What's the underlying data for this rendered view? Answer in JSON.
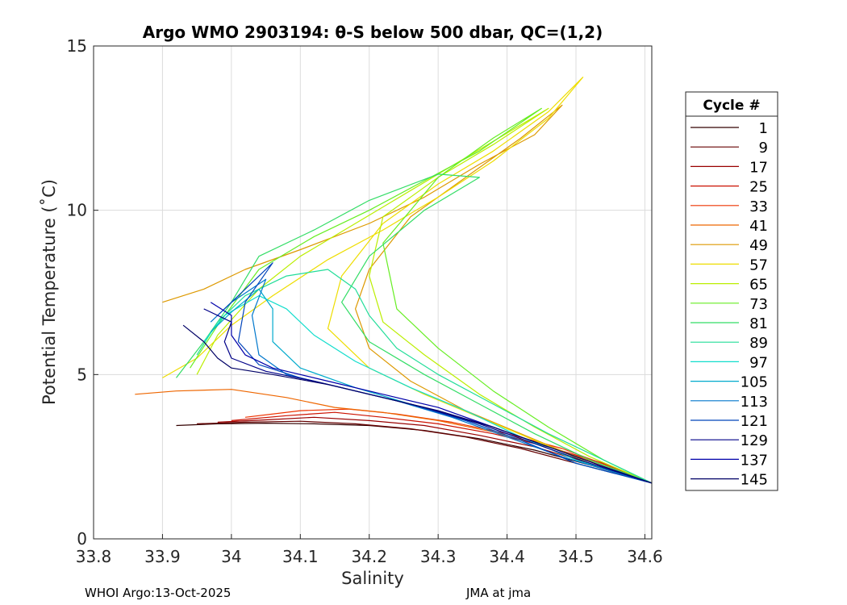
{
  "chart_data": {
    "type": "line",
    "title": "Argo WMO 2903194: θ-S below 500 dbar,  QC=(1,2)",
    "xlabel": "Salinity",
    "ylabel": "Potential Temperature (˚C)",
    "xlim": [
      33.8,
      34.61
    ],
    "ylim": [
      0,
      15
    ],
    "xticks": [
      33.8,
      33.9,
      34.0,
      34.1,
      34.2,
      34.3,
      34.4,
      34.5,
      34.6
    ],
    "xtick_labels": [
      "33.8",
      "33.9",
      "34",
      "34.1",
      "34.2",
      "34.3",
      "34.4",
      "34.5",
      "34.6"
    ],
    "yticks": [
      0,
      5,
      10,
      15
    ],
    "ytick_labels": [
      "0",
      "5",
      "10",
      "15"
    ],
    "grid": true,
    "legend": {
      "title": "Cycle #",
      "placement": "right-outside",
      "entries": [
        "1",
        "9",
        "17",
        "25",
        "33",
        "41",
        "49",
        "57",
        "65",
        "73",
        "81",
        "89",
        "97",
        "105",
        "113",
        "121",
        "129",
        "137",
        "145"
      ],
      "colors": [
        "#330000",
        "#660000",
        "#990000",
        "#cc1100",
        "#ee3300",
        "#ee6600",
        "#dd9900",
        "#eedd00",
        "#bbee00",
        "#66ee22",
        "#33dd66",
        "#22dd99",
        "#11ddcc",
        "#00aacc",
        "#0077cc",
        "#0044bb",
        "#000088",
        "#0000aa",
        "#000066"
      ]
    },
    "series": [
      {
        "color": "#330000",
        "points": [
          [
            33.92,
            3.45
          ],
          [
            33.98,
            3.5
          ],
          [
            34.05,
            3.52
          ],
          [
            34.12,
            3.5
          ],
          [
            34.2,
            3.45
          ],
          [
            34.28,
            3.3
          ],
          [
            34.36,
            3.05
          ],
          [
            34.44,
            2.7
          ],
          [
            34.52,
            2.25
          ],
          [
            34.61,
            1.7
          ]
        ]
      },
      {
        "color": "#660000",
        "points": [
          [
            33.95,
            3.5
          ],
          [
            34.02,
            3.55
          ],
          [
            34.1,
            3.58
          ],
          [
            34.18,
            3.5
          ],
          [
            34.26,
            3.35
          ],
          [
            34.34,
            3.1
          ],
          [
            34.42,
            2.75
          ],
          [
            34.5,
            2.3
          ],
          [
            34.61,
            1.7
          ]
        ]
      },
      {
        "color": "#990000",
        "points": [
          [
            33.98,
            3.55
          ],
          [
            34.05,
            3.62
          ],
          [
            34.12,
            3.7
          ],
          [
            34.2,
            3.6
          ],
          [
            34.28,
            3.45
          ],
          [
            34.36,
            3.15
          ],
          [
            34.44,
            2.8
          ],
          [
            34.52,
            2.3
          ],
          [
            34.61,
            1.7
          ]
        ]
      },
      {
        "color": "#cc1100",
        "points": [
          [
            34.0,
            3.6
          ],
          [
            34.08,
            3.75
          ],
          [
            34.15,
            3.85
          ],
          [
            34.22,
            3.7
          ],
          [
            34.3,
            3.5
          ],
          [
            34.38,
            3.2
          ],
          [
            34.46,
            2.8
          ],
          [
            34.54,
            2.3
          ],
          [
            34.61,
            1.7
          ]
        ]
      },
      {
        "color": "#ee3300",
        "points": [
          [
            34.02,
            3.7
          ],
          [
            34.1,
            3.9
          ],
          [
            34.17,
            3.95
          ],
          [
            34.24,
            3.8
          ],
          [
            34.32,
            3.55
          ],
          [
            34.4,
            3.2
          ],
          [
            34.48,
            2.75
          ],
          [
            34.55,
            2.2
          ],
          [
            34.61,
            1.7
          ]
        ]
      },
      {
        "color": "#ee6600",
        "points": [
          [
            33.86,
            4.4
          ],
          [
            33.92,
            4.5
          ],
          [
            34.0,
            4.55
          ],
          [
            34.08,
            4.3
          ],
          [
            34.15,
            4.0
          ],
          [
            34.22,
            3.85
          ],
          [
            34.3,
            3.6
          ],
          [
            34.38,
            3.25
          ],
          [
            34.46,
            2.8
          ],
          [
            34.54,
            2.25
          ],
          [
            34.61,
            1.7
          ]
        ]
      },
      {
        "color": "#dd9900",
        "points": [
          [
            33.9,
            7.2
          ],
          [
            33.96,
            7.6
          ],
          [
            34.02,
            8.2
          ],
          [
            34.1,
            8.8
          ],
          [
            34.2,
            9.6
          ],
          [
            34.28,
            10.4
          ],
          [
            34.36,
            11.4
          ],
          [
            34.44,
            12.3
          ],
          [
            34.48,
            13.2
          ],
          [
            34.42,
            12.2
          ],
          [
            34.34,
            11.0
          ],
          [
            34.26,
            9.8
          ],
          [
            34.2,
            8.2
          ],
          [
            34.18,
            7.0
          ],
          [
            34.2,
            5.8
          ],
          [
            34.26,
            4.8
          ],
          [
            34.34,
            3.9
          ],
          [
            34.42,
            3.2
          ],
          [
            34.5,
            2.5
          ],
          [
            34.61,
            1.7
          ]
        ]
      },
      {
        "color": "#eedd00",
        "points": [
          [
            33.9,
            4.9
          ],
          [
            33.95,
            5.5
          ],
          [
            34.0,
            6.5
          ],
          [
            34.06,
            7.4
          ],
          [
            34.14,
            8.5
          ],
          [
            34.22,
            9.4
          ],
          [
            34.3,
            10.4
          ],
          [
            34.38,
            11.5
          ],
          [
            34.46,
            12.8
          ],
          [
            34.51,
            14.05
          ],
          [
            34.46,
            13.0
          ],
          [
            34.38,
            11.8
          ],
          [
            34.3,
            10.8
          ],
          [
            34.22,
            9.6
          ],
          [
            34.16,
            8.0
          ],
          [
            34.14,
            6.4
          ],
          [
            34.2,
            5.2
          ],
          [
            34.28,
            4.4
          ],
          [
            34.36,
            3.7
          ],
          [
            34.44,
            3.0
          ],
          [
            34.52,
            2.3
          ],
          [
            34.61,
            1.7
          ]
        ]
      },
      {
        "color": "#bbee00",
        "points": [
          [
            33.95,
            5.0
          ],
          [
            33.98,
            6.2
          ],
          [
            34.04,
            7.6
          ],
          [
            34.1,
            8.6
          ],
          [
            34.18,
            9.6
          ],
          [
            34.26,
            10.6
          ],
          [
            34.34,
            11.6
          ],
          [
            34.42,
            12.6
          ],
          [
            34.46,
            13.1
          ],
          [
            34.38,
            12.0
          ],
          [
            34.3,
            11.0
          ],
          [
            34.22,
            9.8
          ],
          [
            34.2,
            8.0
          ],
          [
            34.22,
            6.6
          ],
          [
            34.28,
            5.6
          ],
          [
            34.36,
            4.4
          ],
          [
            34.44,
            3.4
          ],
          [
            34.52,
            2.5
          ],
          [
            34.61,
            1.7
          ]
        ]
      },
      {
        "color": "#66ee22",
        "points": [
          [
            33.94,
            5.2
          ],
          [
            33.98,
            6.5
          ],
          [
            34.04,
            8.2
          ],
          [
            34.12,
            9.2
          ],
          [
            34.2,
            10.0
          ],
          [
            34.28,
            10.9
          ],
          [
            34.36,
            11.8
          ],
          [
            34.45,
            13.1
          ],
          [
            34.38,
            12.2
          ],
          [
            34.3,
            11.0
          ],
          [
            34.22,
            9.0
          ],
          [
            34.24,
            7.0
          ],
          [
            34.3,
            5.8
          ],
          [
            34.38,
            4.5
          ],
          [
            34.46,
            3.4
          ],
          [
            34.54,
            2.4
          ],
          [
            34.61,
            1.7
          ]
        ]
      },
      {
        "color": "#33dd66",
        "points": [
          [
            33.92,
            4.9
          ],
          [
            33.96,
            6.0
          ],
          [
            34.0,
            7.2
          ],
          [
            34.04,
            8.6
          ],
          [
            34.12,
            9.4
          ],
          [
            34.2,
            10.3
          ],
          [
            34.3,
            11.1
          ],
          [
            34.36,
            11.0
          ],
          [
            34.28,
            10.0
          ],
          [
            34.2,
            8.6
          ],
          [
            34.16,
            7.2
          ],
          [
            34.2,
            6.0
          ],
          [
            34.28,
            5.0
          ],
          [
            34.36,
            4.1
          ],
          [
            34.44,
            3.2
          ],
          [
            34.52,
            2.4
          ],
          [
            34.61,
            1.7
          ]
        ]
      },
      {
        "color": "#22dd99",
        "points": [
          [
            33.95,
            5.6
          ],
          [
            33.98,
            6.6
          ],
          [
            34.02,
            7.4
          ],
          [
            34.08,
            8.0
          ],
          [
            34.14,
            8.2
          ],
          [
            34.18,
            7.6
          ],
          [
            34.2,
            6.8
          ],
          [
            34.24,
            5.8
          ],
          [
            34.3,
            5.0
          ],
          [
            34.38,
            4.1
          ],
          [
            34.46,
            3.2
          ],
          [
            34.54,
            2.4
          ],
          [
            34.61,
            1.7
          ]
        ]
      },
      {
        "color": "#11ddcc",
        "points": [
          [
            33.96,
            6.0
          ],
          [
            33.99,
            6.8
          ],
          [
            34.04,
            7.4
          ],
          [
            34.08,
            7.0
          ],
          [
            34.12,
            6.2
          ],
          [
            34.18,
            5.4
          ],
          [
            34.26,
            4.6
          ],
          [
            34.34,
            3.9
          ],
          [
            34.42,
            3.1
          ],
          [
            34.5,
            2.4
          ],
          [
            34.61,
            1.7
          ]
        ]
      },
      {
        "color": "#00aacc",
        "points": [
          [
            33.97,
            6.3
          ],
          [
            34.0,
            6.9
          ],
          [
            34.04,
            7.6
          ],
          [
            34.06,
            7.0
          ],
          [
            34.06,
            6.0
          ],
          [
            34.1,
            5.2
          ],
          [
            34.18,
            4.6
          ],
          [
            34.26,
            4.1
          ],
          [
            34.34,
            3.6
          ],
          [
            34.42,
            3.0
          ],
          [
            34.5,
            2.3
          ],
          [
            34.61,
            1.7
          ]
        ]
      },
      {
        "color": "#0077cc",
        "points": [
          [
            33.97,
            6.6
          ],
          [
            34.0,
            7.2
          ],
          [
            34.05,
            7.9
          ],
          [
            34.03,
            6.8
          ],
          [
            34.04,
            5.6
          ],
          [
            34.08,
            5.0
          ],
          [
            34.16,
            4.6
          ],
          [
            34.24,
            4.2
          ],
          [
            34.32,
            3.7
          ],
          [
            34.4,
            3.1
          ],
          [
            34.48,
            2.5
          ],
          [
            34.61,
            1.7
          ]
        ]
      },
      {
        "color": "#0044bb",
        "points": [
          [
            33.98,
            6.8
          ],
          [
            34.02,
            7.6
          ],
          [
            34.06,
            8.4
          ],
          [
            34.02,
            7.2
          ],
          [
            34.01,
            6.0
          ],
          [
            34.04,
            5.3
          ],
          [
            34.1,
            4.9
          ],
          [
            34.18,
            4.5
          ],
          [
            34.26,
            4.1
          ],
          [
            34.34,
            3.6
          ],
          [
            34.42,
            3.0
          ],
          [
            34.5,
            2.3
          ],
          [
            34.61,
            1.7
          ]
        ]
      },
      {
        "color": "#000088",
        "points": [
          [
            33.96,
            7.0
          ],
          [
            34.0,
            6.6
          ],
          [
            33.99,
            6.0
          ],
          [
            34.0,
            5.5
          ],
          [
            34.05,
            5.1
          ],
          [
            34.12,
            4.8
          ],
          [
            34.2,
            4.4
          ],
          [
            34.28,
            4.0
          ],
          [
            34.36,
            3.5
          ],
          [
            34.44,
            2.9
          ],
          [
            34.52,
            2.3
          ],
          [
            34.61,
            1.7
          ]
        ]
      },
      {
        "color": "#0000aa",
        "points": [
          [
            33.97,
            7.2
          ],
          [
            34.0,
            6.8
          ],
          [
            34.0,
            6.2
          ],
          [
            34.02,
            5.6
          ],
          [
            34.06,
            5.2
          ],
          [
            34.14,
            4.8
          ],
          [
            34.22,
            4.4
          ],
          [
            34.3,
            4.0
          ],
          [
            34.38,
            3.4
          ],
          [
            34.46,
            2.8
          ],
          [
            34.54,
            2.2
          ],
          [
            34.61,
            1.7
          ]
        ]
      },
      {
        "color": "#000066",
        "points": [
          [
            33.93,
            6.5
          ],
          [
            33.96,
            6.0
          ],
          [
            33.98,
            5.5
          ],
          [
            34.0,
            5.2
          ],
          [
            34.06,
            5.0
          ],
          [
            34.14,
            4.7
          ],
          [
            34.22,
            4.3
          ],
          [
            34.3,
            3.9
          ],
          [
            34.38,
            3.4
          ],
          [
            34.46,
            2.8
          ],
          [
            34.54,
            2.2
          ],
          [
            34.61,
            1.7
          ]
        ]
      }
    ]
  },
  "footer": {
    "left": "WHOI Argo:13-Oct-2025",
    "right": "JMA at jma"
  }
}
